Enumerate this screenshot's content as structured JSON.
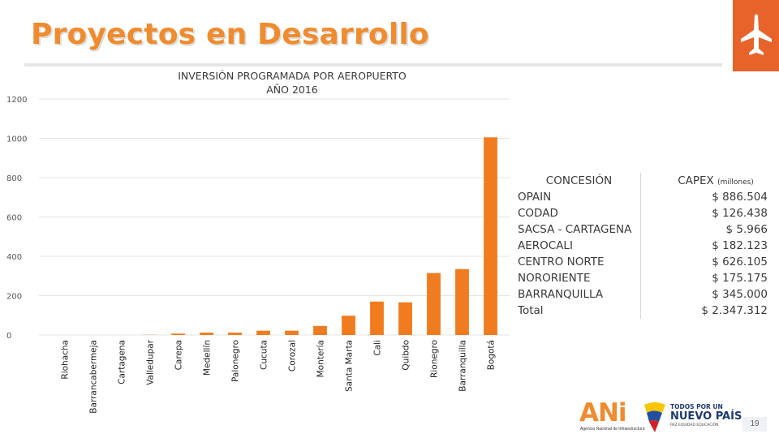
{
  "slide": {
    "title": "Proyectos en Desarrollo",
    "page_number": "19",
    "accent_color": "#f08b2e",
    "icon": "airplane-icon"
  },
  "chart_data": {
    "type": "bar",
    "title": "INVERSIÓN PROGRAMADA POR AEROPUERTO",
    "subtitle": "AÑO 2016",
    "categories": [
      "Riohacha",
      "Barrancabermeja",
      "Cartagena",
      "Valledupar",
      "Carepa",
      "Medellín",
      "Palonegro",
      "Cucuta",
      "Corozal",
      "Montería",
      "Santa Marta",
      "Cali",
      "Quibdo",
      "Rionegro",
      "Barranquilla",
      "Bogotá"
    ],
    "values": [
      0,
      0,
      0,
      1,
      7,
      12,
      12,
      22,
      22,
      46,
      98,
      170,
      166,
      315,
      335,
      1005
    ],
    "ylim": [
      0,
      1200
    ],
    "yticks": [
      "0",
      "200",
      "400",
      "600",
      "800",
      "1000",
      "1200"
    ],
    "bar_color": "#f07c1f",
    "grid": true
  },
  "table": {
    "header_concesion": "CONCESIÓN",
    "header_capex": "CAPEX",
    "header_capex_unit": "(millones)",
    "rows": [
      {
        "name": "OPAIN",
        "value": "$ 886.504"
      },
      {
        "name": "CODAD",
        "value": "$ 126.438"
      },
      {
        "name": "SACSA - CARTAGENA",
        "value": "$ 5.966"
      },
      {
        "name": "AEROCALI",
        "value": "$ 182.123"
      },
      {
        "name": "CENTRO NORTE",
        "value": "$ 626.105"
      },
      {
        "name": "NORORIENTE",
        "value": "$ 175.175"
      },
      {
        "name": "BARRANQUILLA",
        "value": "$ 345.000"
      },
      {
        "name": "Total",
        "value": "$ 2.347.312"
      }
    ]
  },
  "logos": {
    "ani_mark": "ANi",
    "ani_subtitle": "Agencia Nacional de Infraestructura",
    "gov_line1": "TODOS POR UN",
    "gov_line2": "NUEVO PAÍS",
    "gov_line3": "PAZ   EQUIDAD   EDUCACIÓN"
  }
}
